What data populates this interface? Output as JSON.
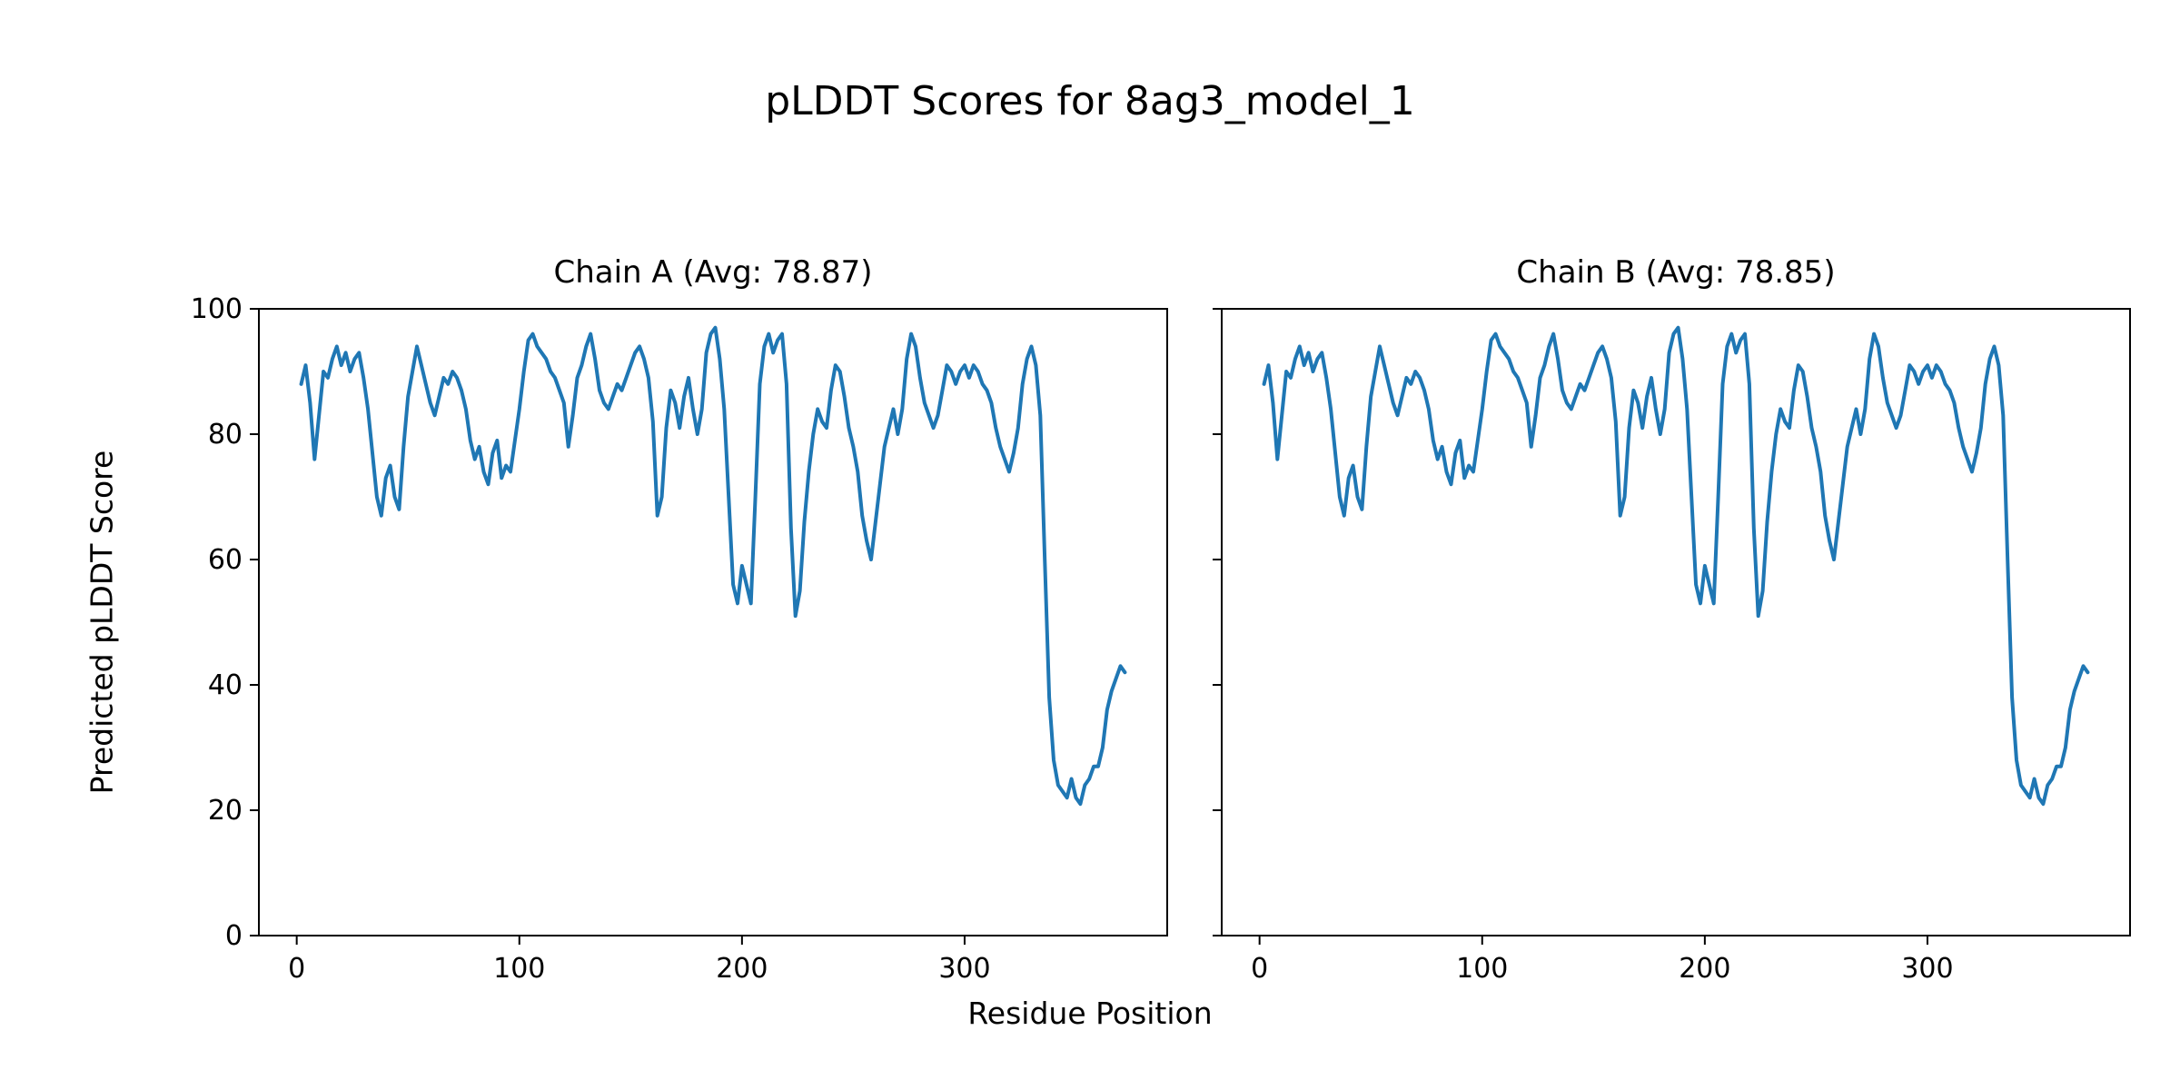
{
  "figure": {
    "title": "pLDDT Scores for 8ag3_model_1",
    "xlabel": "Residue Position",
    "ylabel": "Predicted pLDDT Score",
    "background": "#ffffff",
    "line_color": "#1f77b4"
  },
  "chart_data": [
    {
      "type": "line",
      "title": "Chain A (Avg: 78.87)",
      "avg_plddt": 78.87,
      "xlim": [
        -17,
        391
      ],
      "ylim": [
        0,
        100
      ],
      "xticks": [
        0,
        100,
        200,
        300
      ],
      "yticks": [
        0,
        20,
        40,
        60,
        80,
        100
      ],
      "legend": "off",
      "grid": "off",
      "x": [
        2,
        4,
        6,
        8,
        10,
        12,
        14,
        16,
        18,
        20,
        22,
        24,
        26,
        28,
        30,
        32,
        34,
        36,
        38,
        40,
        42,
        44,
        46,
        48,
        50,
        52,
        54,
        56,
        58,
        60,
        62,
        64,
        66,
        68,
        70,
        72,
        74,
        76,
        78,
        80,
        82,
        84,
        86,
        88,
        90,
        92,
        94,
        96,
        98,
        100,
        102,
        104,
        106,
        108,
        110,
        112,
        114,
        116,
        118,
        120,
        122,
        124,
        126,
        128,
        130,
        132,
        134,
        136,
        138,
        140,
        142,
        144,
        146,
        148,
        150,
        152,
        154,
        156,
        158,
        160,
        162,
        164,
        166,
        168,
        170,
        172,
        174,
        176,
        178,
        180,
        182,
        184,
        186,
        188,
        190,
        192,
        194,
        196,
        198,
        200,
        202,
        204,
        206,
        208,
        210,
        212,
        214,
        216,
        218,
        220,
        222,
        224,
        226,
        228,
        230,
        232,
        234,
        236,
        238,
        240,
        242,
        244,
        246,
        248,
        250,
        252,
        254,
        256,
        258,
        260,
        262,
        264,
        266,
        268,
        270,
        272,
        274,
        276,
        278,
        280,
        282,
        284,
        286,
        288,
        290,
        292,
        294,
        296,
        298,
        300,
        302,
        304,
        306,
        308,
        310,
        312,
        314,
        316,
        318,
        320,
        322,
        324,
        326,
        328,
        330,
        332,
        334,
        336,
        338,
        340,
        342,
        344,
        346,
        348,
        350,
        352,
        354,
        356,
        358,
        360,
        362,
        364,
        366,
        368,
        370,
        372
      ],
      "y": [
        88,
        91,
        85,
        76,
        83,
        90,
        89,
        92,
        94,
        91,
        93,
        90,
        92,
        93,
        89,
        84,
        77,
        70,
        67,
        73,
        75,
        70,
        68,
        78,
        86,
        90,
        94,
        91,
        88,
        85,
        83,
        86,
        89,
        88,
        90,
        89,
        87,
        84,
        79,
        76,
        78,
        74,
        72,
        77,
        79,
        73,
        75,
        74,
        79,
        84,
        90,
        95,
        96,
        94,
        93,
        92,
        90,
        89,
        87,
        85,
        78,
        83,
        89,
        91,
        94,
        96,
        92,
        87,
        85,
        84,
        86,
        88,
        87,
        89,
        91,
        93,
        94,
        92,
        89,
        82,
        67,
        70,
        81,
        87,
        85,
        81,
        86,
        89,
        84,
        80,
        84,
        93,
        96,
        97,
        92,
        84,
        70,
        56,
        53,
        59,
        56,
        53,
        70,
        88,
        94,
        96,
        93,
        95,
        96,
        88,
        65,
        51,
        55,
        66,
        74,
        80,
        84,
        82,
        81,
        87,
        91,
        90,
        86,
        81,
        78,
        74,
        67,
        63,
        60,
        66,
        72,
        78,
        81,
        84,
        80,
        84,
        92,
        96,
        94,
        89,
        85,
        83,
        81,
        83,
        87,
        91,
        90,
        88,
        90,
        91,
        89,
        91,
        90,
        88,
        87,
        85,
        81,
        78,
        76,
        74,
        77,
        81,
        88,
        92,
        94,
        91,
        83,
        60,
        38,
        28,
        24,
        23,
        22,
        25,
        22,
        21,
        24,
        25,
        27,
        27,
        30,
        36,
        39,
        41,
        43,
        42
      ]
    },
    {
      "type": "line",
      "title": "Chain B (Avg: 78.85)",
      "avg_plddt": 78.85,
      "xlim": [
        -17,
        391
      ],
      "ylim": [
        0,
        100
      ],
      "xticks": [
        0,
        100,
        200,
        300
      ],
      "yticks": [
        0,
        20,
        40,
        60,
        80,
        100
      ],
      "legend": "off",
      "grid": "off",
      "x": [
        2,
        4,
        6,
        8,
        10,
        12,
        14,
        16,
        18,
        20,
        22,
        24,
        26,
        28,
        30,
        32,
        34,
        36,
        38,
        40,
        42,
        44,
        46,
        48,
        50,
        52,
        54,
        56,
        58,
        60,
        62,
        64,
        66,
        68,
        70,
        72,
        74,
        76,
        78,
        80,
        82,
        84,
        86,
        88,
        90,
        92,
        94,
        96,
        98,
        100,
        102,
        104,
        106,
        108,
        110,
        112,
        114,
        116,
        118,
        120,
        122,
        124,
        126,
        128,
        130,
        132,
        134,
        136,
        138,
        140,
        142,
        144,
        146,
        148,
        150,
        152,
        154,
        156,
        158,
        160,
        162,
        164,
        166,
        168,
        170,
        172,
        174,
        176,
        178,
        180,
        182,
        184,
        186,
        188,
        190,
        192,
        194,
        196,
        198,
        200,
        202,
        204,
        206,
        208,
        210,
        212,
        214,
        216,
        218,
        220,
        222,
        224,
        226,
        228,
        230,
        232,
        234,
        236,
        238,
        240,
        242,
        244,
        246,
        248,
        250,
        252,
        254,
        256,
        258,
        260,
        262,
        264,
        266,
        268,
        270,
        272,
        274,
        276,
        278,
        280,
        282,
        284,
        286,
        288,
        290,
        292,
        294,
        296,
        298,
        300,
        302,
        304,
        306,
        308,
        310,
        312,
        314,
        316,
        318,
        320,
        322,
        324,
        326,
        328,
        330,
        332,
        334,
        336,
        338,
        340,
        342,
        344,
        346,
        348,
        350,
        352,
        354,
        356,
        358,
        360,
        362,
        364,
        366,
        368,
        370,
        372
      ],
      "y": [
        88,
        91,
        85,
        76,
        83,
        90,
        89,
        92,
        94,
        91,
        93,
        90,
        92,
        93,
        89,
        84,
        77,
        70,
        67,
        73,
        75,
        70,
        68,
        78,
        86,
        90,
        94,
        91,
        88,
        85,
        83,
        86,
        89,
        88,
        90,
        89,
        87,
        84,
        79,
        76,
        78,
        74,
        72,
        77,
        79,
        73,
        75,
        74,
        79,
        84,
        90,
        95,
        96,
        94,
        93,
        92,
        90,
        89,
        87,
        85,
        78,
        83,
        89,
        91,
        94,
        96,
        92,
        87,
        85,
        84,
        86,
        88,
        87,
        89,
        91,
        93,
        94,
        92,
        89,
        82,
        67,
        70,
        81,
        87,
        85,
        81,
        86,
        89,
        84,
        80,
        84,
        93,
        96,
        97,
        92,
        84,
        70,
        56,
        53,
        59,
        56,
        53,
        70,
        88,
        94,
        96,
        93,
        95,
        96,
        88,
        65,
        51,
        55,
        66,
        74,
        80,
        84,
        82,
        81,
        87,
        91,
        90,
        86,
        81,
        78,
        74,
        67,
        63,
        60,
        66,
        72,
        78,
        81,
        84,
        80,
        84,
        92,
        96,
        94,
        89,
        85,
        83,
        81,
        83,
        87,
        91,
        90,
        88,
        90,
        91,
        89,
        91,
        90,
        88,
        87,
        85,
        81,
        78,
        76,
        74,
        77,
        81,
        88,
        92,
        94,
        91,
        83,
        60,
        38,
        28,
        24,
        23,
        22,
        25,
        22,
        21,
        24,
        25,
        27,
        27,
        30,
        36,
        39,
        41,
        43,
        42
      ]
    }
  ]
}
